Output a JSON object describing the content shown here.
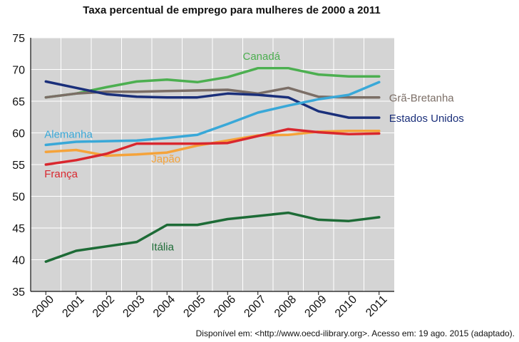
{
  "title": "Taxa percentual de emprego para mulheres de 2000 a 2011",
  "source_note": "Disponível em: <http://www.oecd-ilibrary.org>. Acesso em: 19 ago. 2015 (adaptado).",
  "chart_data": {
    "type": "line",
    "title": "Taxa percentual de emprego para mulheres de 2000 a 2011",
    "xlabel": "",
    "ylabel": "",
    "categories": [
      "2000",
      "2001",
      "2002",
      "2003",
      "2004",
      "2005",
      "2006",
      "2007",
      "2008",
      "2009",
      "2010",
      "2011"
    ],
    "ylim": [
      35,
      75
    ],
    "yticks": [
      35,
      40,
      45,
      50,
      55,
      60,
      65,
      70,
      75
    ],
    "grid": true,
    "background": "#d4d4d4",
    "series": [
      {
        "name": "Canadá",
        "color": "#4caf50",
        "values": [
          65.6,
          66.2,
          67.2,
          68.1,
          68.4,
          68.0,
          68.8,
          70.2,
          70.2,
          69.2,
          68.9,
          68.9
        ]
      },
      {
        "name": "Grã-Bretanha",
        "color": "#7b6e66",
        "values": [
          65.6,
          66.2,
          66.5,
          66.5,
          66.6,
          66.7,
          66.8,
          66.2,
          67.1,
          65.7,
          65.6,
          65.6
        ]
      },
      {
        "name": "Estados Unidos",
        "color": "#1a2f7a",
        "values": [
          68.1,
          67.1,
          66.1,
          65.7,
          65.6,
          65.6,
          66.2,
          66.0,
          65.6,
          63.4,
          62.4,
          62.4
        ]
      },
      {
        "name": "Alemanha",
        "color": "#39a8d8",
        "values": [
          58.1,
          58.6,
          58.7,
          58.8,
          59.2,
          59.7,
          61.4,
          63.2,
          64.3,
          65.3,
          66.0,
          68.0
        ]
      },
      {
        "name": "Japão",
        "color": "#f5a33a",
        "values": [
          57.0,
          57.3,
          56.4,
          56.6,
          56.9,
          58.0,
          58.8,
          59.6,
          59.7,
          60.2,
          60.3,
          60.3
        ]
      },
      {
        "name": "França",
        "color": "#d9272e",
        "values": [
          55.0,
          55.7,
          56.7,
          58.3,
          58.3,
          58.3,
          58.4,
          59.5,
          60.6,
          60.1,
          59.8,
          59.9
        ]
      },
      {
        "name": "Itália",
        "color": "#1d6b36",
        "values": [
          39.7,
          41.4,
          42.1,
          42.8,
          45.5,
          45.5,
          46.4,
          46.9,
          47.4,
          46.3,
          46.1,
          46.7
        ]
      }
    ]
  }
}
